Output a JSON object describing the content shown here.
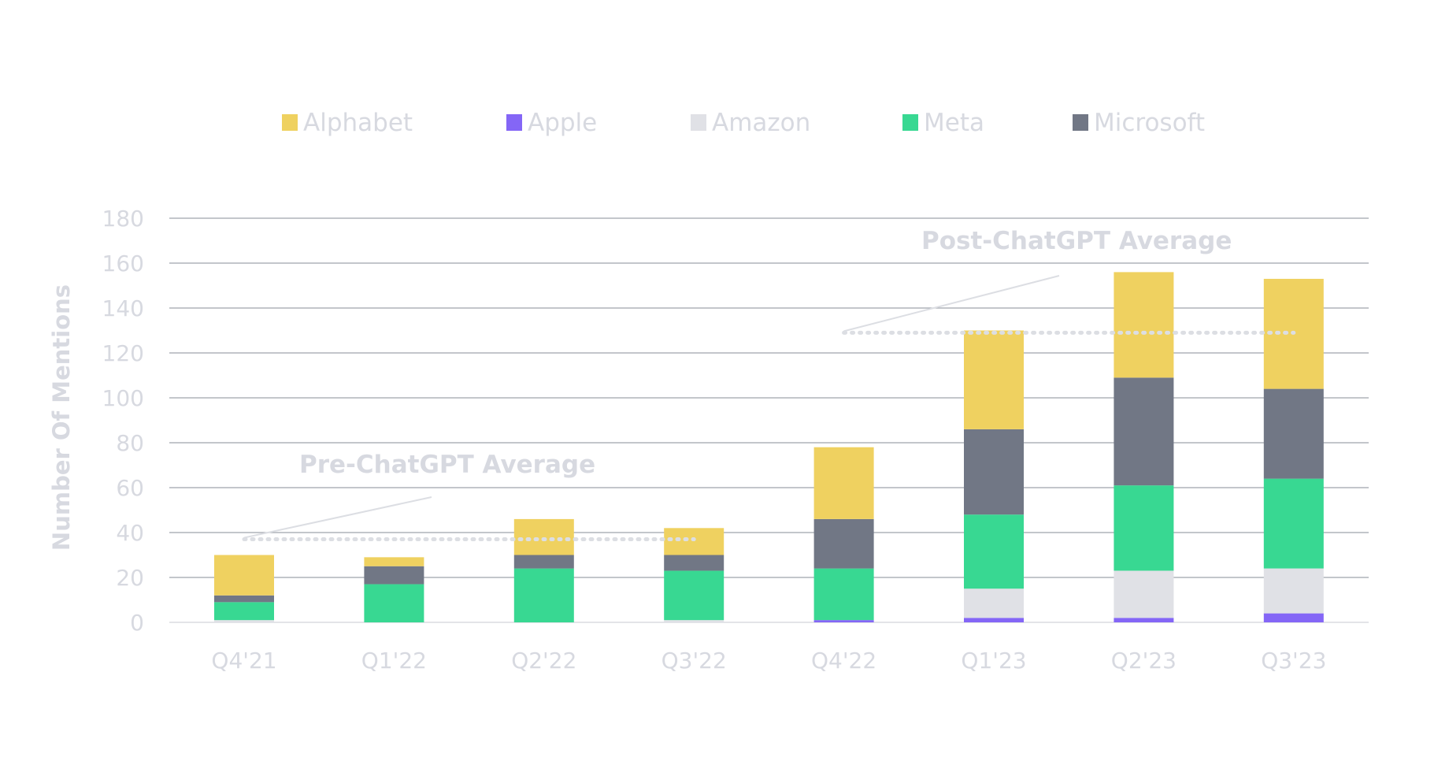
{
  "chart_data": {
    "type": "bar",
    "stacked": true,
    "ylabel": "Number Of Mentions",
    "xlabel": "",
    "ylim": [
      0,
      180
    ],
    "yticks": [
      0,
      20,
      40,
      60,
      80,
      100,
      120,
      140,
      160,
      180
    ],
    "grid": true,
    "legend_position": "top",
    "categories": [
      "Q4'21",
      "Q1'22",
      "Q2'22",
      "Q3'22",
      "Q4'22",
      "Q1'23",
      "Q2'23",
      "Q3'23"
    ],
    "series": [
      {
        "name": "Apple",
        "color": "#8466f6",
        "values": [
          0,
          0,
          0,
          0,
          1,
          2,
          2,
          4
        ]
      },
      {
        "name": "Amazon",
        "color": "#e0e1e6",
        "values": [
          1,
          0,
          0,
          1,
          0,
          13,
          21,
          20
        ]
      },
      {
        "name": "Meta",
        "color": "#38d892",
        "values": [
          8,
          17,
          24,
          22,
          23,
          33,
          38,
          40
        ]
      },
      {
        "name": "Microsoft",
        "color": "#717785",
        "values": [
          3,
          8,
          6,
          7,
          22,
          38,
          48,
          40
        ]
      },
      {
        "name": "Alphabet",
        "color": "#efd160",
        "values": [
          18,
          4,
          16,
          12,
          32,
          44,
          47,
          49
        ]
      }
    ],
    "legend_order": [
      "Alphabet",
      "Apple",
      "Amazon",
      "Meta",
      "Microsoft"
    ],
    "annotations": [
      {
        "label": "Pre-ChatGPT Average",
        "value": 37,
        "from_category": "Q4'21",
        "to_category": "Q3'22"
      },
      {
        "label": "Post-ChatGPT Average",
        "value": 129,
        "from_category": "Q4'22",
        "to_category": "Q3'23"
      }
    ]
  }
}
